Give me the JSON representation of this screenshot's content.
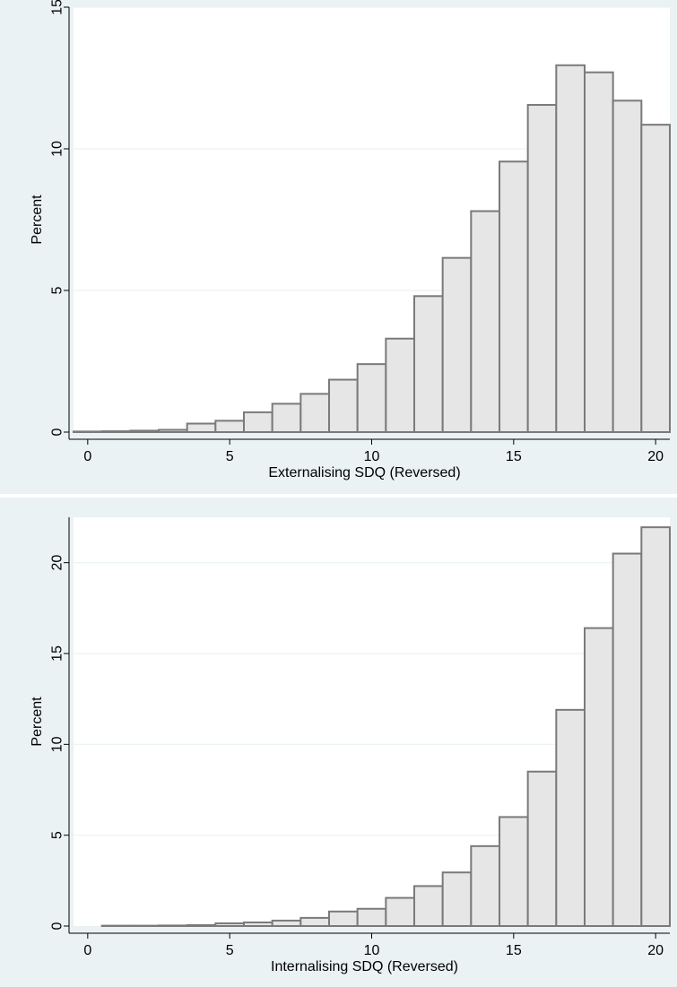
{
  "chart_data": [
    {
      "type": "bar",
      "title": "",
      "xlabel": "Externalising SDQ (Reversed)",
      "ylabel": "Percent",
      "xlim": [
        -0.5,
        20.5
      ],
      "ylim": [
        0,
        15
      ],
      "xticks": [
        0,
        5,
        10,
        15,
        20
      ],
      "yticks": [
        0,
        5,
        10,
        15
      ],
      "grid": true,
      "x": [
        0,
        1,
        2,
        3,
        4,
        5,
        6,
        7,
        8,
        9,
        10,
        11,
        12,
        13,
        14,
        15,
        16,
        17,
        18,
        19,
        20
      ],
      "values": [
        0.02,
        0.03,
        0.05,
        0.08,
        0.3,
        0.4,
        0.7,
        1.0,
        1.35,
        1.85,
        2.4,
        3.3,
        4.8,
        6.15,
        7.8,
        9.55,
        11.55,
        12.95,
        12.7,
        11.7,
        10.85
      ]
    },
    {
      "type": "bar",
      "title": "",
      "xlabel": "Internalising SDQ (Reversed)",
      "ylabel": "Percent",
      "xlim": [
        -0.5,
        20.5
      ],
      "ylim": [
        0,
        22.5
      ],
      "xticks": [
        0,
        5,
        10,
        15,
        20
      ],
      "yticks": [
        0,
        5,
        10,
        15,
        20
      ],
      "grid": true,
      "x": [
        1,
        2,
        3,
        4,
        5,
        6,
        7,
        8,
        9,
        10,
        11,
        12,
        13,
        14,
        15,
        16,
        17,
        18,
        19,
        20
      ],
      "values": [
        0.02,
        0.02,
        0.03,
        0.05,
        0.15,
        0.2,
        0.3,
        0.45,
        0.8,
        0.95,
        1.55,
        2.2,
        2.95,
        4.4,
        6.0,
        8.5,
        11.9,
        16.4,
        20.5,
        21.95
      ]
    }
  ]
}
